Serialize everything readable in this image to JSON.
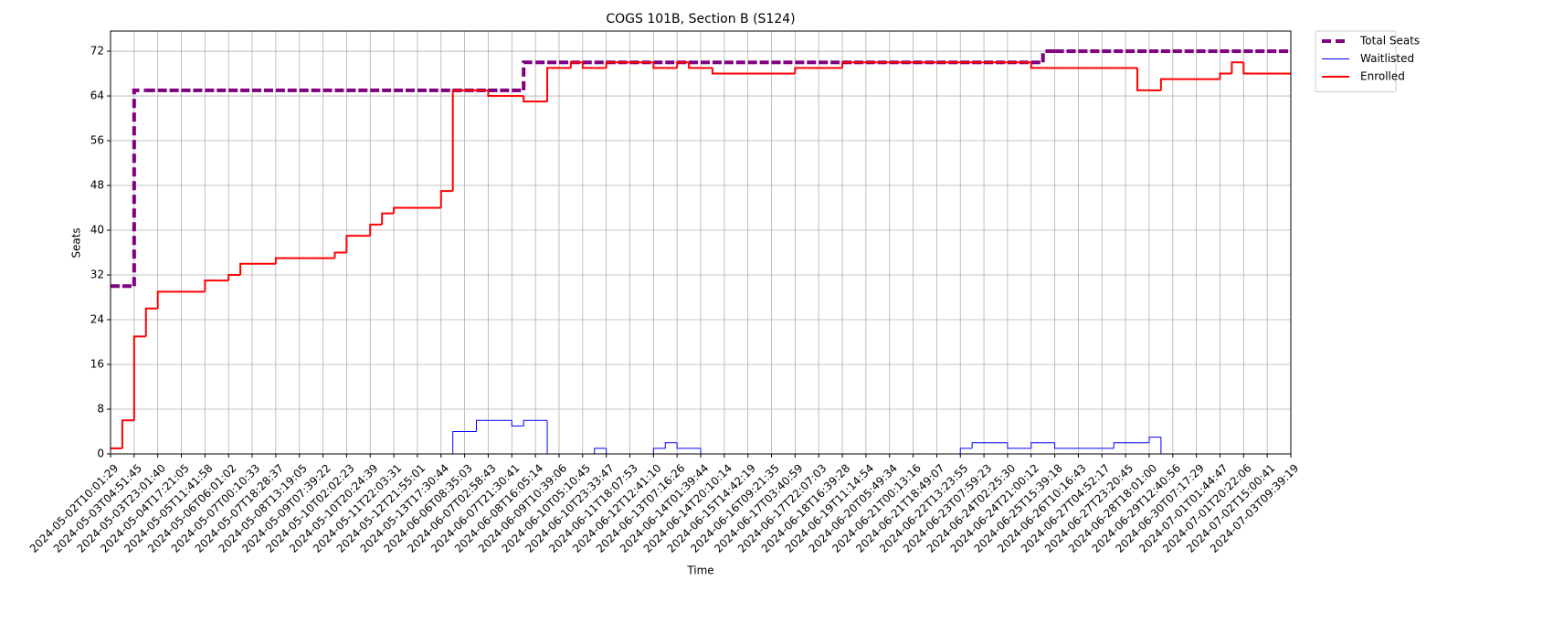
{
  "chart_data": {
    "type": "step",
    "title": "COGS 101B, Section B (S124)",
    "x_label": "Time",
    "y_label": "Seats",
    "categories": [
      "2024-05-02T10:01:29",
      null,
      "2024-05-03T04:51:45",
      null,
      "2024-05-03T23:01:40",
      null,
      "2024-05-04T17:21:05",
      null,
      "2024-05-05T11:41:58",
      null,
      "2024-05-06T06:01:02",
      null,
      "2024-05-07T00:10:33",
      null,
      "2024-05-07T18:28:37",
      null,
      "2024-05-08T13:19:05",
      null,
      "2024-05-09T07:39:22",
      null,
      "2024-05-10T02:02:23",
      null,
      "2024-05-10T20:24:39",
      null,
      "2024-05-11T22:03:31",
      null,
      "2024-05-12T21:55:01",
      null,
      "2024-05-13T17:30:44",
      null,
      "2024-06-06T08:35:03",
      null,
      "2024-06-07T02:58:43",
      null,
      "2024-06-07T21:30:41",
      null,
      "2024-06-08T16:05:14",
      null,
      "2024-06-09T10:39:06",
      null,
      "2024-06-10T05:10:45",
      null,
      "2024-06-10T23:33:47",
      null,
      "2024-06-11T18:07:53",
      null,
      "2024-06-12T12:41:10",
      null,
      "2024-06-13T07:16:26",
      null,
      "2024-06-14T01:39:44",
      null,
      "2024-06-14T20:10:14",
      null,
      "2024-06-15T14:42:19",
      null,
      "2024-06-16T09:21:35",
      null,
      "2024-06-17T03:40:59",
      null,
      "2024-06-17T22:07:03",
      null,
      "2024-06-18T16:39:28",
      null,
      "2024-06-19T11:14:54",
      null,
      "2024-06-20T05:49:34",
      null,
      "2024-06-21T00:13:16",
      null,
      "2024-06-21T18:49:07",
      null,
      "2024-06-22T13:23:55",
      null,
      "2024-06-23T07:59:23",
      null,
      "2024-06-24T02:25:30",
      null,
      "2024-06-24T21:00:12",
      null,
      "2024-06-25T15:39:18",
      null,
      "2024-06-26T10:16:43",
      null,
      "2024-06-27T04:52:17",
      null,
      "2024-06-27T23:20:45",
      null,
      "2024-06-28T18:01:00",
      null,
      "2024-06-29T12:40:56",
      null,
      "2024-06-30T07:17:29",
      null,
      "2024-07-01T01:44:47",
      null,
      "2024-07-01T20:22:06",
      null,
      "2024-07-02T15:00:41",
      null,
      "2024-07-03T09:39:19"
    ],
    "series": [
      {
        "name": "Total Seats",
        "color": "#800080",
        "style": "dashed",
        "width": 4,
        "values": [
          30,
          30,
          65,
          65,
          65,
          65,
          65,
          65,
          65,
          65,
          65,
          65,
          65,
          65,
          65,
          65,
          65,
          65,
          65,
          65,
          65,
          65,
          65,
          65,
          65,
          65,
          65,
          65,
          65,
          65,
          65,
          65,
          65,
          65,
          65,
          70,
          70,
          70,
          70,
          70,
          70,
          70,
          70,
          70,
          70,
          70,
          70,
          70,
          70,
          70,
          70,
          70,
          70,
          70,
          70,
          70,
          70,
          70,
          70,
          70,
          70,
          70,
          70,
          70,
          70,
          70,
          70,
          70,
          70,
          70,
          70,
          70,
          70,
          70,
          70,
          70,
          70,
          70,
          70,
          72,
          72,
          72,
          72,
          72,
          72,
          72,
          72,
          72,
          72,
          72,
          72,
          72,
          72,
          72,
          72,
          72,
          72,
          72,
          72,
          72,
          72
        ]
      },
      {
        "name": "Waitlisted",
        "color": "#0000ff",
        "style": "solid",
        "width": 1,
        "values": [
          0,
          0,
          0,
          0,
          0,
          0,
          0,
          0,
          0,
          0,
          0,
          0,
          0,
          0,
          0,
          0,
          0,
          0,
          0,
          0,
          0,
          0,
          0,
          0,
          0,
          0,
          0,
          0,
          0,
          4,
          4,
          6,
          6,
          6,
          5,
          6,
          6,
          0,
          0,
          0,
          0,
          1,
          0,
          0,
          0,
          0,
          1,
          2,
          1,
          1,
          0,
          0,
          0,
          0,
          0,
          0,
          0,
          0,
          0,
          0,
          0,
          0,
          0,
          0,
          0,
          0,
          0,
          0,
          0,
          0,
          0,
          0,
          1,
          2,
          2,
          2,
          1,
          1,
          2,
          2,
          1,
          1,
          1,
          1,
          1,
          2,
          2,
          2,
          3,
          0,
          0,
          0,
          0,
          0,
          0,
          0,
          0,
          0,
          0,
          0,
          0
        ]
      },
      {
        "name": "Enrolled",
        "color": "#ff0000",
        "style": "solid",
        "width": 2,
        "values": [
          1,
          6,
          21,
          26,
          29,
          29,
          29,
          29,
          31,
          31,
          32,
          34,
          34,
          34,
          35,
          35,
          35,
          35,
          35,
          36,
          39,
          39,
          41,
          43,
          44,
          44,
          44,
          44,
          47,
          65,
          65,
          65,
          64,
          64,
          64,
          63,
          63,
          69,
          69,
          70,
          69,
          69,
          70,
          70,
          70,
          70,
          69,
          69,
          70,
          69,
          69,
          68,
          68,
          68,
          68,
          68,
          68,
          68,
          69,
          69,
          69,
          69,
          70,
          70,
          70,
          70,
          70,
          70,
          70,
          70,
          70,
          70,
          70,
          70,
          70,
          70,
          70,
          70,
          69,
          69,
          69,
          69,
          69,
          69,
          69,
          69,
          69,
          65,
          65,
          67,
          67,
          67,
          67,
          67,
          68,
          70,
          68,
          68,
          68,
          68,
          68
        ]
      }
    ],
    "ylim": [
      0,
      75.6
    ],
    "yticks": [
      0,
      8,
      16,
      24,
      32,
      40,
      48,
      56,
      64,
      72
    ],
    "grid": true,
    "legend": "outside-upper-right"
  }
}
